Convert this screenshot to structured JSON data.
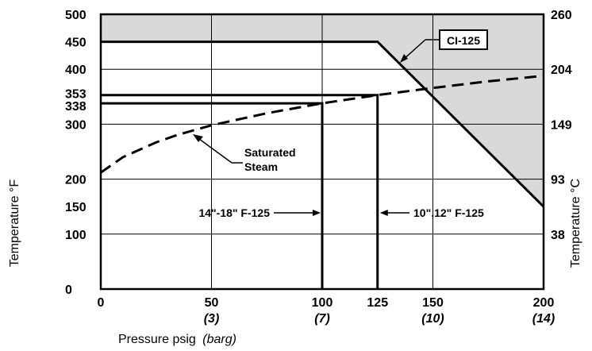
{
  "chart_data": {
    "type": "line",
    "title": "",
    "xlabel": "Pressure psig",
    "xlabel_unit": "(barg)",
    "ylabel": "Temperature °F",
    "y2label": "Temperature °C",
    "xlim": [
      0,
      200
    ],
    "ylim": [
      0,
      500
    ],
    "grid": true,
    "x_ticks": [
      {
        "value": 0,
        "label": "0",
        "sub": ""
      },
      {
        "value": 50,
        "label": "50",
        "sub": "(3)"
      },
      {
        "value": 100,
        "label": "100",
        "sub": "(7)"
      },
      {
        "value": 125,
        "label": "125",
        "sub": ""
      },
      {
        "value": 150,
        "label": "150",
        "sub": "(10)"
      },
      {
        "value": 200,
        "label": "200",
        "sub": "(14)"
      }
    ],
    "x_gridlines": [
      50,
      100,
      150
    ],
    "y_ticks": [
      {
        "value": 0,
        "label": "0"
      },
      {
        "value": 100,
        "label": "100"
      },
      {
        "value": 150,
        "label": "150"
      },
      {
        "value": 200,
        "label": "200"
      },
      {
        "value": 300,
        "label": "300"
      },
      {
        "value": 338,
        "label": "338"
      },
      {
        "value": 353,
        "label": "353"
      },
      {
        "value": 400,
        "label": "400"
      },
      {
        "value": 450,
        "label": "450"
      },
      {
        "value": 500,
        "label": "500"
      }
    ],
    "y_gridlines": [
      100,
      200,
      300,
      400
    ],
    "y2_ticks": [
      {
        "value": 500,
        "label": "260"
      },
      {
        "value": 400,
        "label": "204"
      },
      {
        "value": 300,
        "label": "149"
      },
      {
        "value": 200,
        "label": "93"
      },
      {
        "value": 100,
        "label": "38"
      }
    ],
    "series": [
      {
        "name": "CI-125",
        "style": "solid",
        "x": [
          0,
          125,
          200
        ],
        "y": [
          450,
          450,
          150
        ]
      },
      {
        "name": "Saturated Steam",
        "style": "dashed",
        "x": [
          0,
          10,
          25,
          35,
          50,
          75,
          100,
          125,
          150,
          175,
          200
        ],
        "y": [
          212,
          240,
          267,
          281,
          298,
          320,
          338,
          353,
          366,
          378,
          388
        ]
      },
      {
        "name": "14\"-18\" F-125",
        "style": "solid",
        "x": [
          0,
          100,
          100
        ],
        "y": [
          338,
          338,
          0
        ]
      },
      {
        "name": "10\",12\" F-125",
        "style": "solid",
        "x": [
          0,
          125,
          125
        ],
        "y": [
          353,
          353,
          0
        ]
      }
    ],
    "shaded_region": "above CI-125 line",
    "annotations": [
      {
        "text": "CI-125",
        "boxed": true
      },
      {
        "text_lines": [
          "Saturated",
          "Steam"
        ]
      },
      {
        "text": "14\"-18\" F-125"
      },
      {
        "text": "10\",12\" F-125"
      }
    ],
    "colors": {
      "shade": "#d9d9d9",
      "line": "#000000",
      "grid": "#000000"
    }
  }
}
